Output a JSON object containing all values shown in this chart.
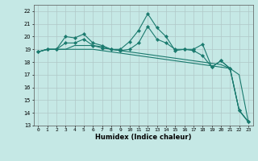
{
  "xlabel": "Humidex (Indice chaleur)",
  "bg_color": "#c5e8e5",
  "grid_color": "#b0c8c8",
  "line_color": "#1a7a6e",
  "xlim": [
    -0.5,
    23.5
  ],
  "ylim": [
    13,
    22.5
  ],
  "yticks": [
    13,
    14,
    15,
    16,
    17,
    18,
    19,
    20,
    21,
    22
  ],
  "xticks": [
    0,
    1,
    2,
    3,
    4,
    5,
    6,
    7,
    8,
    9,
    10,
    11,
    12,
    13,
    14,
    15,
    16,
    17,
    18,
    19,
    20,
    21,
    22,
    23
  ],
  "series1_x": [
    0,
    1,
    2,
    3,
    4,
    5,
    6,
    7,
    8,
    9,
    10,
    11,
    12,
    13,
    14,
    15,
    16,
    17,
    18,
    19,
    20,
    21,
    22,
    23
  ],
  "series1_y": [
    18.8,
    19.0,
    19.0,
    20.0,
    19.9,
    20.2,
    19.5,
    19.3,
    19.0,
    19.0,
    19.6,
    20.5,
    21.8,
    20.7,
    20.0,
    18.9,
    19.0,
    19.0,
    19.4,
    17.6,
    18.1,
    17.5,
    14.2,
    13.3
  ],
  "series2_x": [
    0,
    1,
    2,
    3,
    4,
    5,
    6,
    7,
    8,
    9,
    10,
    11,
    12,
    13,
    14,
    15,
    16,
    17,
    18,
    19,
    20,
    21,
    22,
    23
  ],
  "series2_y": [
    18.8,
    19.0,
    19.0,
    19.0,
    19.0,
    19.0,
    19.0,
    18.9,
    18.8,
    18.7,
    18.6,
    18.5,
    18.4,
    18.3,
    18.2,
    18.1,
    18.0,
    17.9,
    17.8,
    17.7,
    17.6,
    17.5,
    17.0,
    13.3
  ],
  "series3_x": [
    0,
    1,
    2,
    3,
    4,
    5,
    6,
    7,
    8,
    9,
    10,
    11,
    12,
    13,
    14,
    15,
    16,
    17,
    18,
    19,
    20,
    21,
    22,
    23
  ],
  "series3_y": [
    18.8,
    19.0,
    19.0,
    19.0,
    19.3,
    19.3,
    19.3,
    19.2,
    19.0,
    18.9,
    18.8,
    18.7,
    18.6,
    18.5,
    18.4,
    18.3,
    18.2,
    18.1,
    18.0,
    17.9,
    17.8,
    17.5,
    14.2,
    13.3
  ],
  "series4_x": [
    0,
    1,
    2,
    3,
    4,
    5,
    6,
    7,
    8,
    9,
    10,
    11,
    12,
    13,
    14,
    15,
    16,
    17,
    18,
    19,
    20,
    21,
    22,
    23
  ],
  "series4_y": [
    18.8,
    19.0,
    19.0,
    19.5,
    19.5,
    19.8,
    19.3,
    19.1,
    19.0,
    18.9,
    19.0,
    19.5,
    20.8,
    19.8,
    19.5,
    19.0,
    19.0,
    18.9,
    18.5,
    17.6,
    18.1,
    17.5,
    14.2,
    13.3
  ]
}
